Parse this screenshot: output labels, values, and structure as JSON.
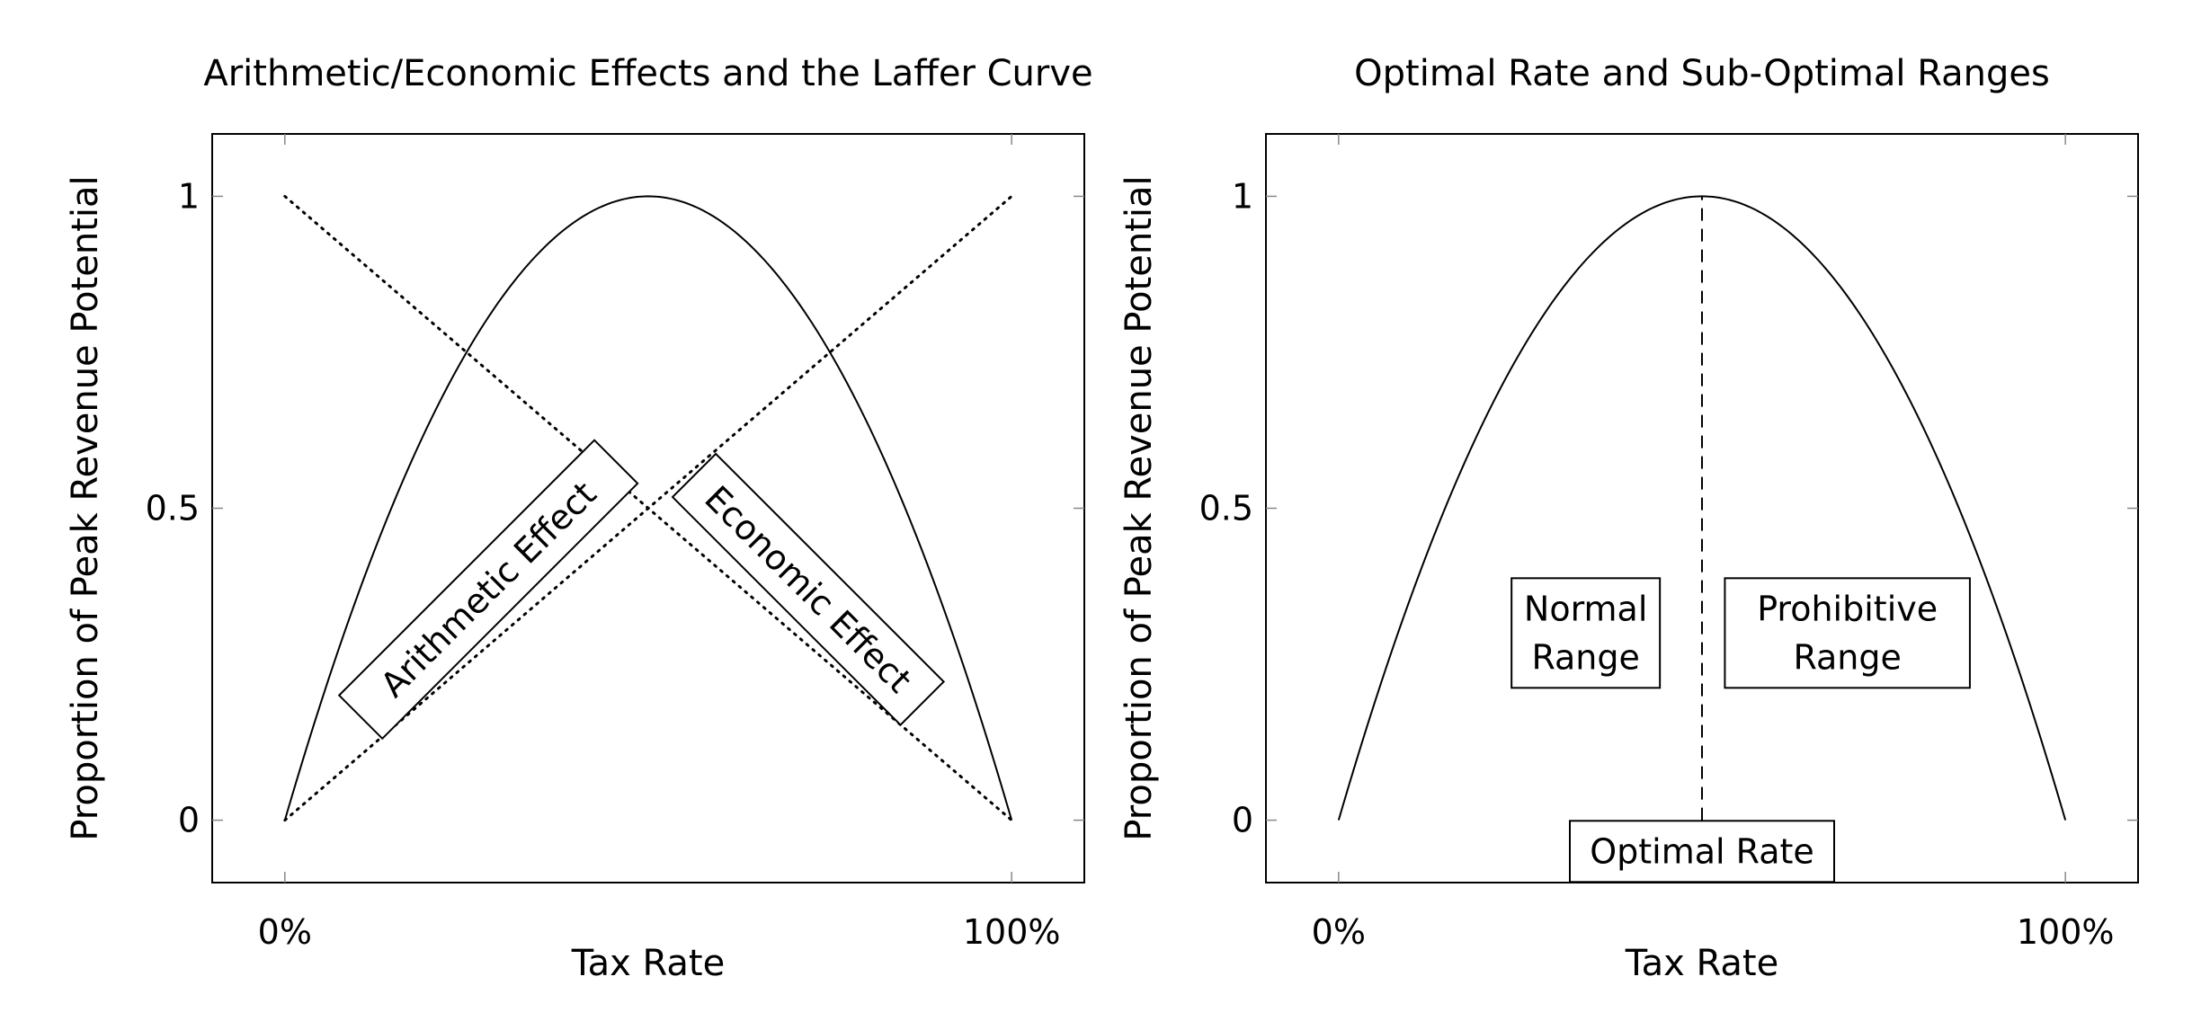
{
  "chart_data": [
    {
      "type": "line",
      "title": "Arithmetic/Economic Effects and the Laffer Curve",
      "xlabel": "Tax Rate",
      "ylabel": "Proportion of Peak Revenue Potential",
      "xlim": [
        -0.1,
        1.1
      ],
      "ylim": [
        -0.1,
        1.1
      ],
      "x_ticks": [
        {
          "value": 0,
          "label": "0%"
        },
        {
          "value": 1,
          "label": "100%"
        }
      ],
      "y_ticks": [
        {
          "value": 0,
          "label": "0"
        },
        {
          "value": 0.5,
          "label": "0.5"
        },
        {
          "value": 1,
          "label": "1"
        }
      ],
      "grid": false,
      "series": [
        {
          "style": "solid",
          "function": "4x(1-x)",
          "x": [
            0,
            0.25,
            0.5,
            0.75,
            1
          ],
          "y": [
            0,
            0.75,
            1,
            0.75,
            0
          ]
        },
        {
          "style": "dotted",
          "x": [
            0,
            1
          ],
          "y": [
            0,
            1
          ]
        },
        {
          "style": "dotted",
          "x": [
            0,
            1
          ],
          "y": [
            1,
            0
          ]
        }
      ],
      "annotations": [
        {
          "text": "Arithmetic Effect",
          "anchor": [
            0.28,
            0.37
          ],
          "rotation_deg": 45
        },
        {
          "text": "Economic Effect",
          "anchor": [
            0.72,
            0.37
          ],
          "rotation_deg": -45
        }
      ]
    },
    {
      "type": "line",
      "title": "Optimal Rate and Sub-Optimal Ranges",
      "xlabel": "Tax Rate",
      "ylabel": "Proportion of Peak Revenue Potential",
      "xlim": [
        -0.1,
        1.1
      ],
      "ylim": [
        -0.1,
        1.1
      ],
      "x_ticks": [
        {
          "value": 0,
          "label": "0%"
        },
        {
          "value": 1,
          "label": "100%"
        }
      ],
      "y_ticks": [
        {
          "value": 0,
          "label": "0"
        },
        {
          "value": 0.5,
          "label": "0.5"
        },
        {
          "value": 1,
          "label": "1"
        }
      ],
      "grid": false,
      "series": [
        {
          "style": "solid",
          "function": "4x(1-x)",
          "x": [
            0,
            0.25,
            0.5,
            0.75,
            1
          ],
          "y": [
            0,
            0.75,
            1,
            0.75,
            0
          ]
        }
      ],
      "vline": {
        "x": 0.5,
        "from": 0,
        "to": 1,
        "style": "dashed"
      },
      "annotations": [
        {
          "lines": [
            "Normal",
            "Range"
          ],
          "anchor": [
            0.34,
            0.3
          ]
        },
        {
          "lines": [
            "Prohibitive",
            "Range"
          ],
          "anchor": [
            0.7,
            0.3
          ]
        },
        {
          "lines": [
            "Optimal Rate"
          ],
          "anchor": [
            0.5,
            -0.05
          ]
        }
      ]
    }
  ]
}
